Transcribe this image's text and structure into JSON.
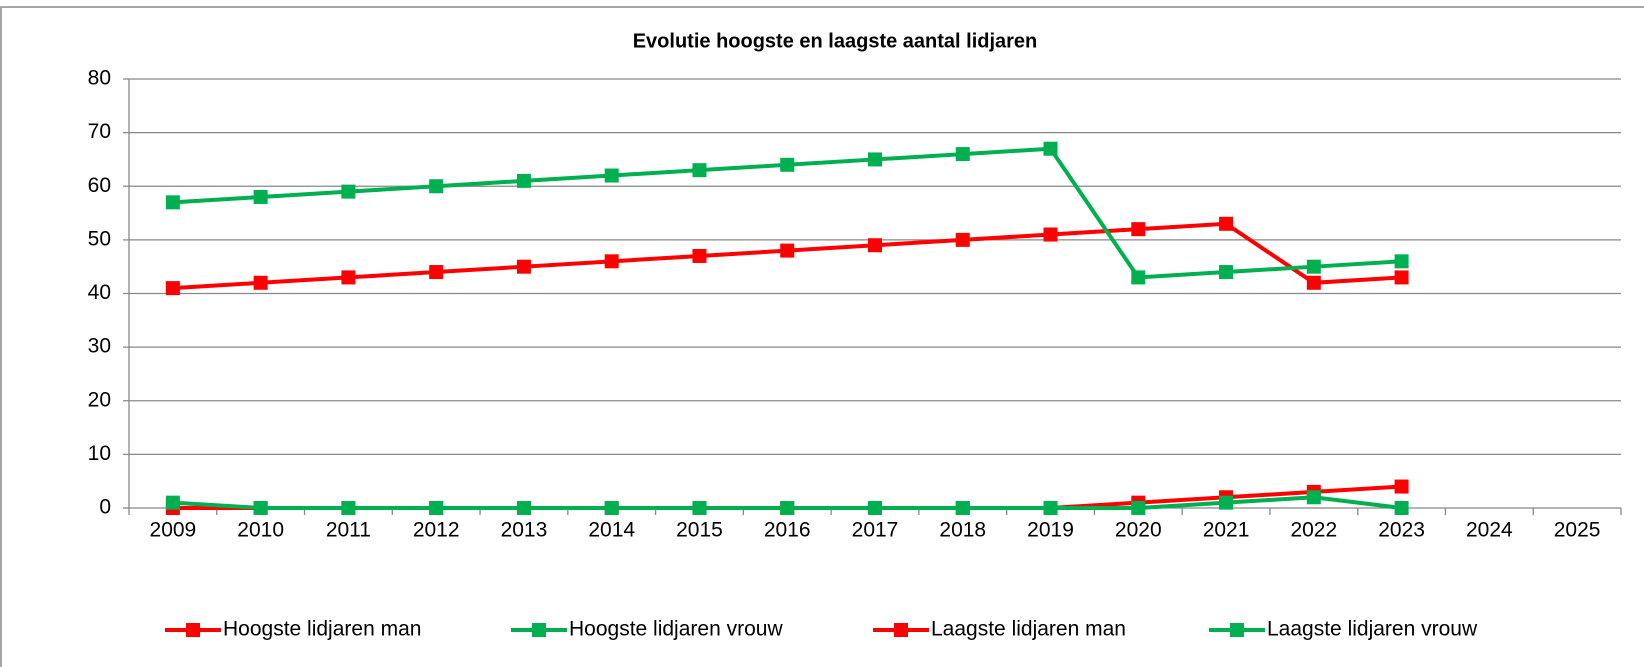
{
  "chart_data": {
    "type": "line",
    "title": "Evolutie hoogste en laagste aantal lidjaren",
    "categories": [
      "2009",
      "2010",
      "2011",
      "2012",
      "2013",
      "2014",
      "2015",
      "2016",
      "2017",
      "2018",
      "2019",
      "2020",
      "2021",
      "2022",
      "2023",
      "2024",
      "2025"
    ],
    "series": [
      {
        "name": "Hoogste lidjaren man",
        "color": "#ff0000",
        "values": [
          41,
          42,
          43,
          44,
          45,
          46,
          47,
          48,
          49,
          50,
          51,
          52,
          53,
          42,
          43,
          null,
          null
        ]
      },
      {
        "name": "Hoogste lidjaren vrouw",
        "color": "#00b050",
        "values": [
          57,
          58,
          59,
          60,
          61,
          62,
          63,
          64,
          65,
          66,
          67,
          43,
          44,
          45,
          46,
          null,
          null
        ]
      },
      {
        "name": "Laagste lidjaren man",
        "color": "#ff0000",
        "values": [
          0,
          0,
          0,
          0,
          0,
          0,
          0,
          0,
          0,
          0,
          0,
          1,
          2,
          3,
          4,
          null,
          null
        ]
      },
      {
        "name": "Laagste lidjaren vrouw",
        "color": "#00b050",
        "values": [
          1,
          0,
          0,
          0,
          0,
          0,
          0,
          0,
          0,
          0,
          0,
          0,
          1,
          2,
          0,
          null,
          null
        ]
      }
    ],
    "ylim": [
      0,
      80
    ],
    "yticks": [
      0,
      10,
      20,
      30,
      40,
      50,
      60,
      70,
      80
    ],
    "grid": true,
    "legend": "bottom"
  }
}
